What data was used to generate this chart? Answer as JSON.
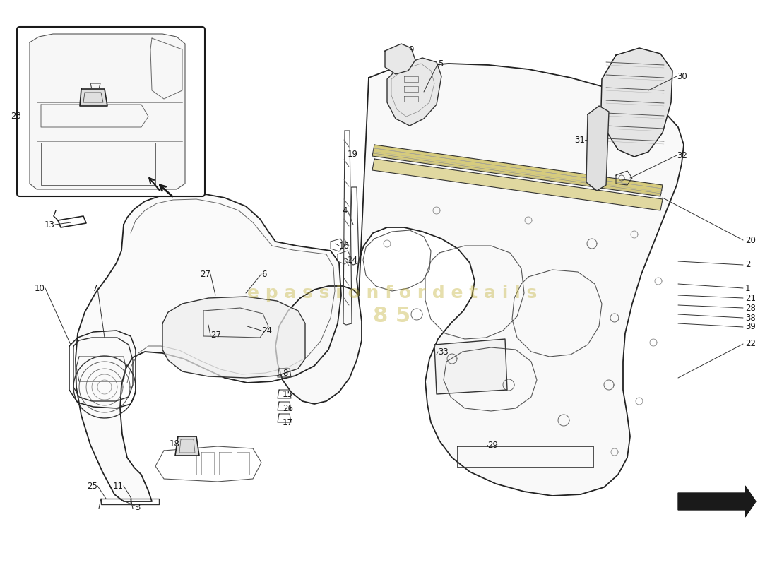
{
  "bg_color": "#ffffff",
  "line_color": "#1a1a1a",
  "watermark1": "epassionfordetails",
  "watermark2": "85",
  "wm_color": "#c8b84a",
  "fig_w": 11.0,
  "fig_h": 8.0,
  "dpi": 100,
  "labels": [
    [
      "1",
      1055,
      408
    ],
    [
      "2",
      1055,
      375
    ],
    [
      "20",
      1055,
      338
    ],
    [
      "21",
      1055,
      422
    ],
    [
      "28",
      1055,
      436
    ],
    [
      "38",
      1055,
      450
    ],
    [
      "39",
      1055,
      463
    ],
    [
      "22",
      1055,
      487
    ],
    [
      "30",
      955,
      108
    ],
    [
      "31",
      825,
      198
    ],
    [
      "32",
      955,
      218
    ],
    [
      "5",
      618,
      88
    ],
    [
      "9",
      575,
      68
    ],
    [
      "19",
      490,
      218
    ],
    [
      "4",
      490,
      298
    ],
    [
      "16",
      478,
      348
    ],
    [
      "14",
      490,
      368
    ],
    [
      "6",
      368,
      388
    ],
    [
      "27",
      295,
      388
    ],
    [
      "24",
      368,
      468
    ],
    [
      "8",
      398,
      528
    ],
    [
      "15",
      398,
      558
    ],
    [
      "26",
      398,
      578
    ],
    [
      "17",
      398,
      598
    ],
    [
      "33",
      618,
      498
    ],
    [
      "29",
      688,
      628
    ],
    [
      "13",
      75,
      318
    ],
    [
      "10",
      62,
      408
    ],
    [
      "7",
      135,
      408
    ],
    [
      "25",
      135,
      688
    ],
    [
      "11",
      172,
      688
    ],
    [
      "18",
      252,
      628
    ],
    [
      "3",
      192,
      718
    ],
    [
      "23",
      28,
      165
    ]
  ]
}
